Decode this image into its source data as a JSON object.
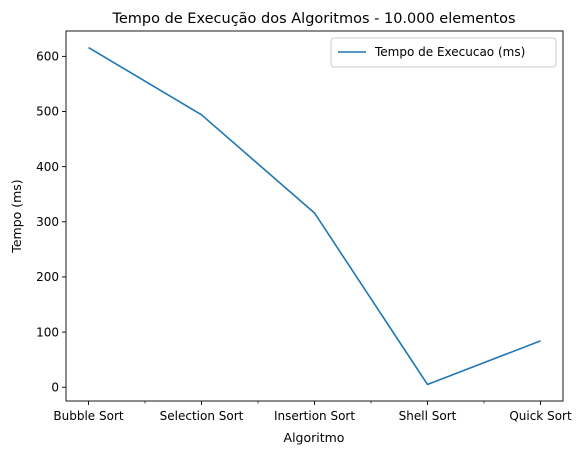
{
  "chart_data": {
    "type": "line",
    "title": "Tempo de Execução dos Algoritmos - 10.000 elementos",
    "xlabel": "Algoritmo",
    "ylabel": "Tempo (ms)",
    "categories": [
      "Bubble Sort",
      "Selection Sort",
      "Insertion Sort",
      "Shell Sort",
      "Quick Sort"
    ],
    "series": [
      {
        "name": "Tempo de Execucao (ms)",
        "values": [
          616,
          494,
          316,
          5,
          84
        ],
        "color": "#1f77b4"
      }
    ],
    "ylim": [
      -25,
      646
    ],
    "yticks": [
      0,
      100,
      200,
      300,
      400,
      500,
      600
    ],
    "grid": false,
    "legend": "top-right"
  }
}
